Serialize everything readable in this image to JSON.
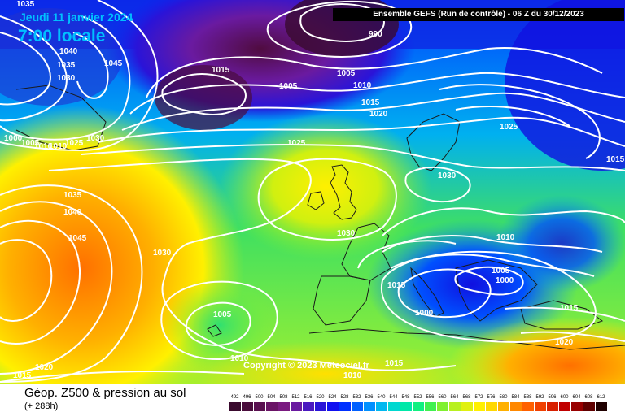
{
  "header": {
    "date": "Jeudi 11 janvier 2024",
    "time": "7:00 locale",
    "model": "Ensemble GEFS  (Run de contrôle)  -  06 Z du 30/12/2023"
  },
  "copyright": "Copyright © 2023 Meteociel.fr",
  "footer": {
    "title": "Géop. Z500 & pression au sol",
    "subtitle": "(+ 288h)"
  },
  "isobar_labels": [
    {
      "id": "isobar-1035-a",
      "text": "1035"
    },
    {
      "id": "isobar-1040-a",
      "text": "1040"
    },
    {
      "id": "isobar-1035-b",
      "text": "1035"
    },
    {
      "id": "isobar-1045-a",
      "text": "1045"
    },
    {
      "id": "isobar-1030-a",
      "text": "1030"
    },
    {
      "id": "isobar-1015-a",
      "text": "1015"
    },
    {
      "id": "isobar-990",
      "text": "990"
    },
    {
      "id": "isobar-1005-a",
      "text": "1005"
    },
    {
      "id": "isobar-1005-b",
      "text": "1005"
    },
    {
      "id": "isobar-1010-a",
      "text": "1010"
    },
    {
      "id": "isobar-1015-b",
      "text": "1015"
    },
    {
      "id": "isobar-1020-a",
      "text": "1020"
    },
    {
      "id": "isobar-1025-a",
      "text": "1025"
    },
    {
      "id": "isobar-1000-a",
      "text": "1000"
    },
    {
      "id": "isobar-1005-c",
      "text": "1005"
    },
    {
      "id": "isobar-1010-b",
      "text": "1010"
    },
    {
      "id": "isobar-1010-c",
      "text": "1010"
    },
    {
      "id": "isobar-1025-b",
      "text": "1025"
    },
    {
      "id": "isobar-1030-b",
      "text": "1030"
    },
    {
      "id": "isobar-1025-c",
      "text": "1025"
    },
    {
      "id": "isobar-1015-c",
      "text": "1015"
    },
    {
      "id": "isobar-1030-c",
      "text": "1030"
    },
    {
      "id": "isobar-1035-c",
      "text": "1035"
    },
    {
      "id": "isobar-1040-b",
      "text": "1040"
    },
    {
      "id": "isobar-1045-b",
      "text": "1045"
    },
    {
      "id": "isobar-1030-d",
      "text": "1030"
    },
    {
      "id": "isobar-1030-e",
      "text": "1030"
    },
    {
      "id": "isobar-1010-d",
      "text": "1010"
    },
    {
      "id": "isobar-1005-d",
      "text": "1005"
    },
    {
      "id": "isobar-1000-b",
      "text": "1000"
    },
    {
      "id": "isobar-1015-d",
      "text": "1015"
    },
    {
      "id": "isobar-1000-c",
      "text": "1000"
    },
    {
      "id": "isobar-1015-e",
      "text": "1015"
    },
    {
      "id": "isobar-1005-e",
      "text": "1005"
    },
    {
      "id": "isobar-1010-e",
      "text": "1010"
    },
    {
      "id": "isobar-1015-f",
      "text": "1015"
    },
    {
      "id": "isobar-1010-f",
      "text": "1010"
    },
    {
      "id": "isobar-1020-b",
      "text": "1020"
    },
    {
      "id": "isobar-1015-g",
      "text": "1015"
    },
    {
      "id": "isobar-1020-c",
      "text": "1020"
    }
  ],
  "scale": {
    "labels": [
      "492",
      "496",
      "500",
      "504",
      "508",
      "512",
      "516",
      "520",
      "524",
      "528",
      "532",
      "536",
      "540",
      "544",
      "548",
      "552",
      "556",
      "560",
      "564",
      "568",
      "572",
      "576",
      "580",
      "584",
      "588",
      "592",
      "596",
      "600",
      "604",
      "608",
      "612"
    ],
    "colors": [
      "#3a0a2e",
      "#4a0c3c",
      "#5a1050",
      "#6a1466",
      "#7a1a80",
      "#6a1aa0",
      "#4a18c0",
      "#2a14d8",
      "#1010f0",
      "#0030ff",
      "#0060ff",
      "#0090ff",
      "#00b8f0",
      "#00d8d0",
      "#00e8a8",
      "#10f080",
      "#40f050",
      "#80f030",
      "#b8f020",
      "#e0f010",
      "#fff000",
      "#ffd800",
      "#ffb000",
      "#ff8800",
      "#ff6000",
      "#f04000",
      "#d82000",
      "#c00000",
      "#980000",
      "#600000",
      "#200000"
    ]
  }
}
